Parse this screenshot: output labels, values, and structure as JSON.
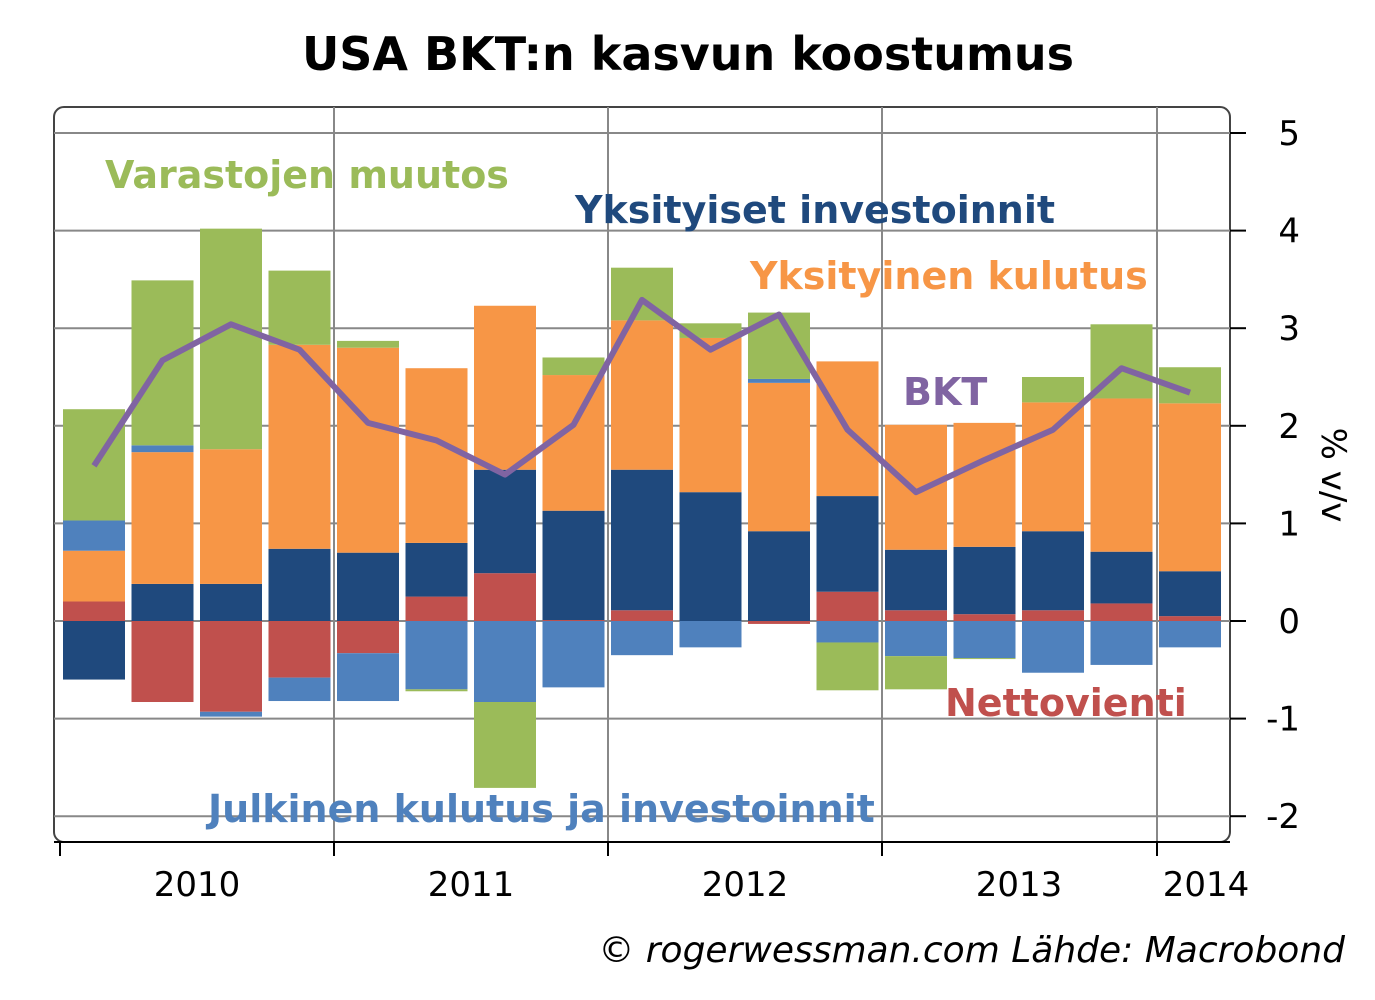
{
  "chart_data": {
    "type": "bar",
    "title": "USA BKT:n kasvun koostumus",
    "ylabel": "% v/v",
    "xlabel": "",
    "ylim": [
      -2.3,
      5.3
    ],
    "yticks": [
      "-2",
      "-1",
      "0",
      "1",
      "2",
      "3",
      "4",
      "5"
    ],
    "x_ticks": [
      "2010",
      "2011",
      "2012",
      "2013",
      "2014"
    ],
    "grid": true,
    "stacked": true,
    "series": [
      {
        "name": "Nettovienti",
        "color": "#C0504D",
        "values": [
          0.2,
          -0.83,
          -0.93,
          -0.58,
          -0.33,
          0.25,
          0.49,
          0.01,
          0.11,
          0,
          -0.03,
          0.3,
          0.11,
          0.07,
          0.11,
          0.18,
          0.05
        ]
      },
      {
        "name": "Yksityiset investoinnit",
        "color": "#1F497D",
        "values": [
          -0.6,
          0.38,
          0.38,
          0.74,
          0.7,
          0.55,
          1.06,
          1.12,
          1.44,
          1.32,
          0.92,
          0.98,
          0.62,
          0.69,
          0.81,
          0.53,
          0.46
        ]
      },
      {
        "name": "Yksityinen kulutus",
        "color": "#F79646",
        "values": [
          0.52,
          1.35,
          1.38,
          2.09,
          2.1,
          1.79,
          1.68,
          1.39,
          1.53,
          1.58,
          1.52,
          1.38,
          1.28,
          1.27,
          1.32,
          1.57,
          1.72
        ]
      },
      {
        "name": "Julkinen kulutus ja investoinnit",
        "color": "#4F81BD",
        "values": [
          0.31,
          0.07,
          -0.05,
          -0.24,
          -0.49,
          -0.7,
          -0.83,
          -0.68,
          -0.35,
          -0.27,
          0.04,
          -0.22,
          -0.36,
          -0.38,
          -0.53,
          -0.45,
          -0.27
        ]
      },
      {
        "name": "Varastojen muutos",
        "color": "#9BBB59",
        "values": [
          1.14,
          1.69,
          2.26,
          0.76,
          0.07,
          -0.02,
          -0.88,
          0.18,
          0.54,
          0.15,
          0.68,
          -0.49,
          -0.34,
          -0.01,
          0.26,
          0.76,
          0.37
        ]
      }
    ],
    "line": {
      "name": "BKT",
      "color": "#8064A2",
      "values": [
        1.59,
        2.67,
        3.04,
        2.78,
        2.03,
        1.85,
        1.5,
        2.01,
        3.29,
        2.78,
        3.14,
        1.96,
        1.32,
        1.65,
        1.96,
        2.59,
        2.34
      ]
    },
    "credit": "© rogerwessman.com Lähde: Macrobond"
  }
}
